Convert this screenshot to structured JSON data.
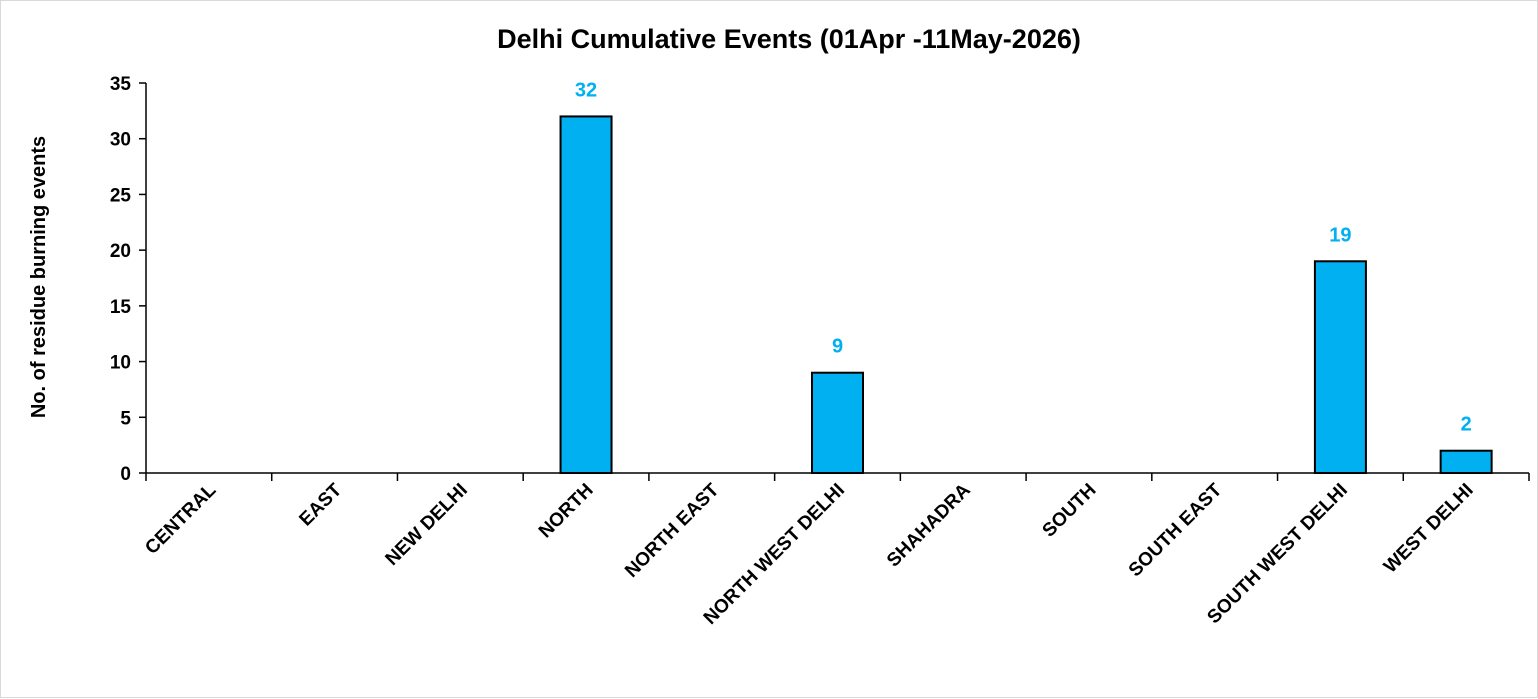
{
  "chart_data": {
    "type": "bar",
    "title": "Delhi Cumulative Events (01Apr -11May-2026)",
    "xlabel": "",
    "ylabel": "No. of residue burning events",
    "categories": [
      "CENTRAL",
      "EAST",
      "NEW DELHI",
      "NORTH",
      "NORTH EAST",
      "NORTH WEST DELHI",
      "SHAHADRA",
      "SOUTH",
      "SOUTH EAST",
      "SOUTH WEST DELHI",
      "WEST DELHI"
    ],
    "values": [
      0,
      0,
      0,
      32,
      0,
      9,
      0,
      0,
      0,
      19,
      2
    ],
    "data_labels": [
      "",
      "",
      "",
      "32",
      "",
      "9",
      "",
      "",
      "",
      "19",
      "2"
    ],
    "ylim": [
      0,
      35
    ],
    "yticks": [
      0,
      5,
      10,
      15,
      20,
      25,
      30,
      35
    ],
    "grid": false,
    "legend": "none",
    "colors": {
      "bar_fill": "#00B0F0",
      "bar_stroke": "#000000",
      "data_label": "#00B0F0"
    }
  }
}
